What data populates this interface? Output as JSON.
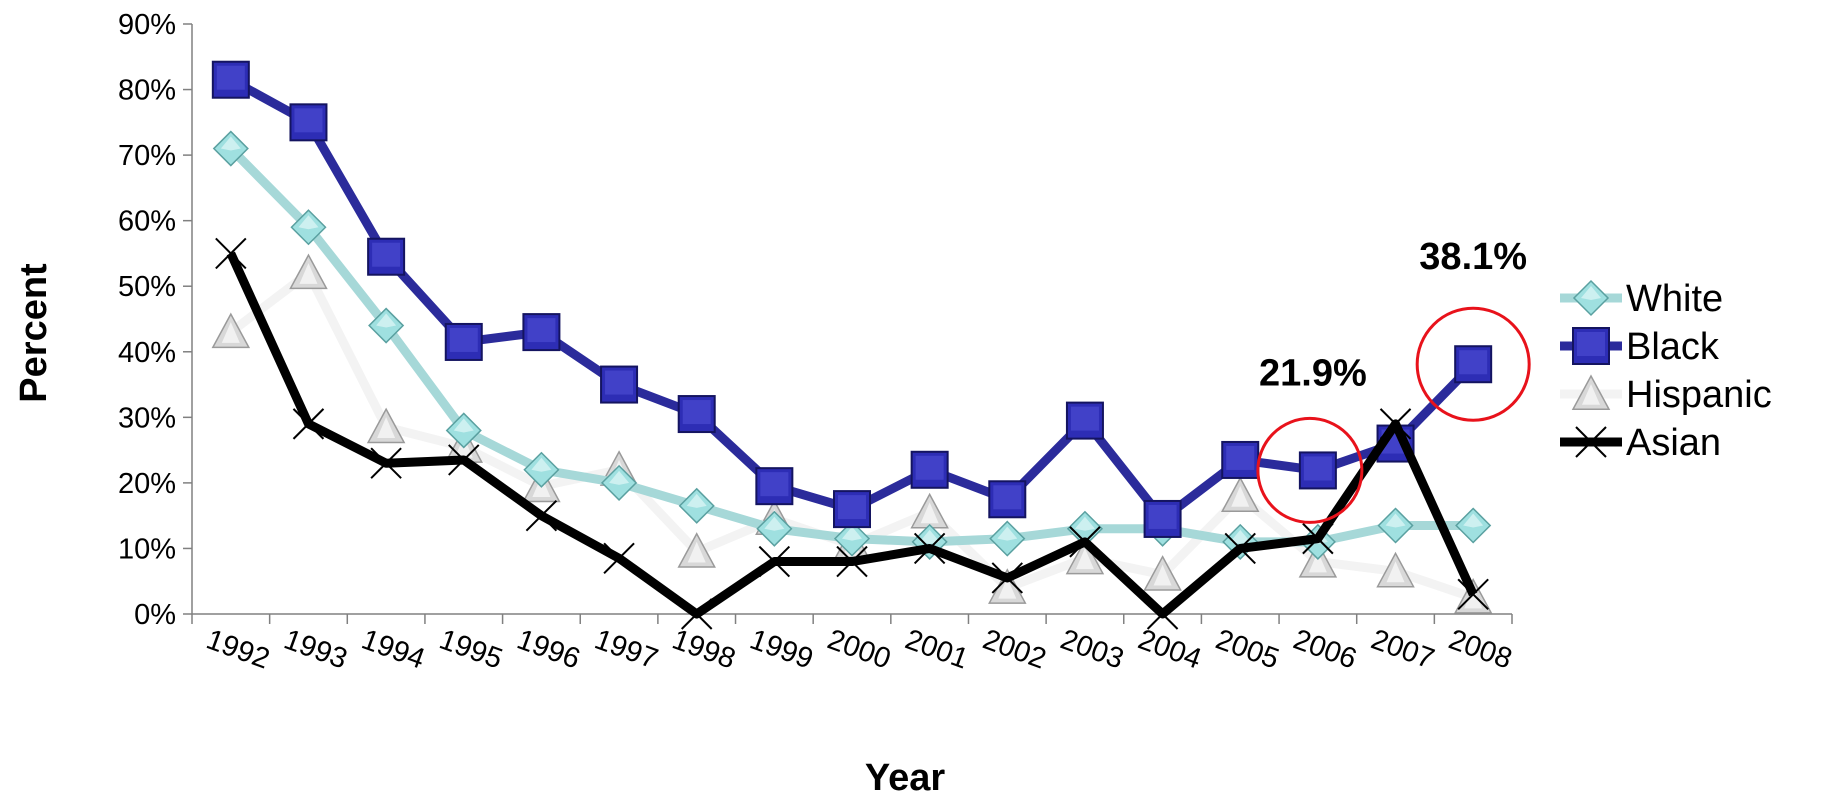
{
  "chart_data": {
    "type": "line",
    "title": "",
    "xlabel": "Year",
    "ylabel": "Percent",
    "categories": [
      "1992",
      "1993",
      "1994",
      "1995",
      "1996",
      "1997",
      "1998",
      "1999",
      "2000",
      "2001",
      "2002",
      "2003",
      "2004",
      "2005",
      "2006",
      "2007",
      "2008"
    ],
    "ylim": [
      0,
      90
    ],
    "yticks": [
      "0%",
      "10%",
      "20%",
      "30%",
      "40%",
      "50%",
      "60%",
      "70%",
      "80%",
      "90%"
    ],
    "legend_position": "right",
    "grid": false,
    "series": [
      {
        "name": "White",
        "color": "#a6d8d8",
        "marker": "diamond",
        "values": [
          71,
          59,
          44,
          28,
          22,
          20,
          16.5,
          13,
          11.5,
          11,
          11.5,
          13,
          13,
          11,
          11,
          13.5,
          13.5
        ]
      },
      {
        "name": "Black",
        "color": "#2b2b9b",
        "marker": "square",
        "values": [
          81.5,
          75,
          54.5,
          41.5,
          43,
          35,
          30.5,
          19.5,
          16,
          22,
          17.5,
          29.5,
          14.5,
          23.5,
          21.9,
          26,
          38.1
        ]
      },
      {
        "name": "Hispanic",
        "color": "#f3f3f3",
        "marker": "triangle",
        "values": [
          43,
          52,
          28.5,
          25.5,
          19.5,
          22,
          9.5,
          14.5,
          10.5,
          15.5,
          4,
          8.5,
          6,
          18,
          8,
          6.5,
          2.5
        ]
      },
      {
        "name": "Asian",
        "color": "#000000",
        "marker": "x",
        "values": [
          55,
          29,
          23,
          23.5,
          15,
          8.5,
          0,
          8,
          8,
          10,
          5.5,
          11,
          0,
          10,
          11.5,
          29,
          3
        ]
      }
    ],
    "annotations": [
      {
        "text": "21.9%",
        "series": "Black",
        "category": "2006"
      },
      {
        "text": "38.1%",
        "series": "Black",
        "category": "2008"
      }
    ],
    "highlight_color": "#e8121b"
  }
}
